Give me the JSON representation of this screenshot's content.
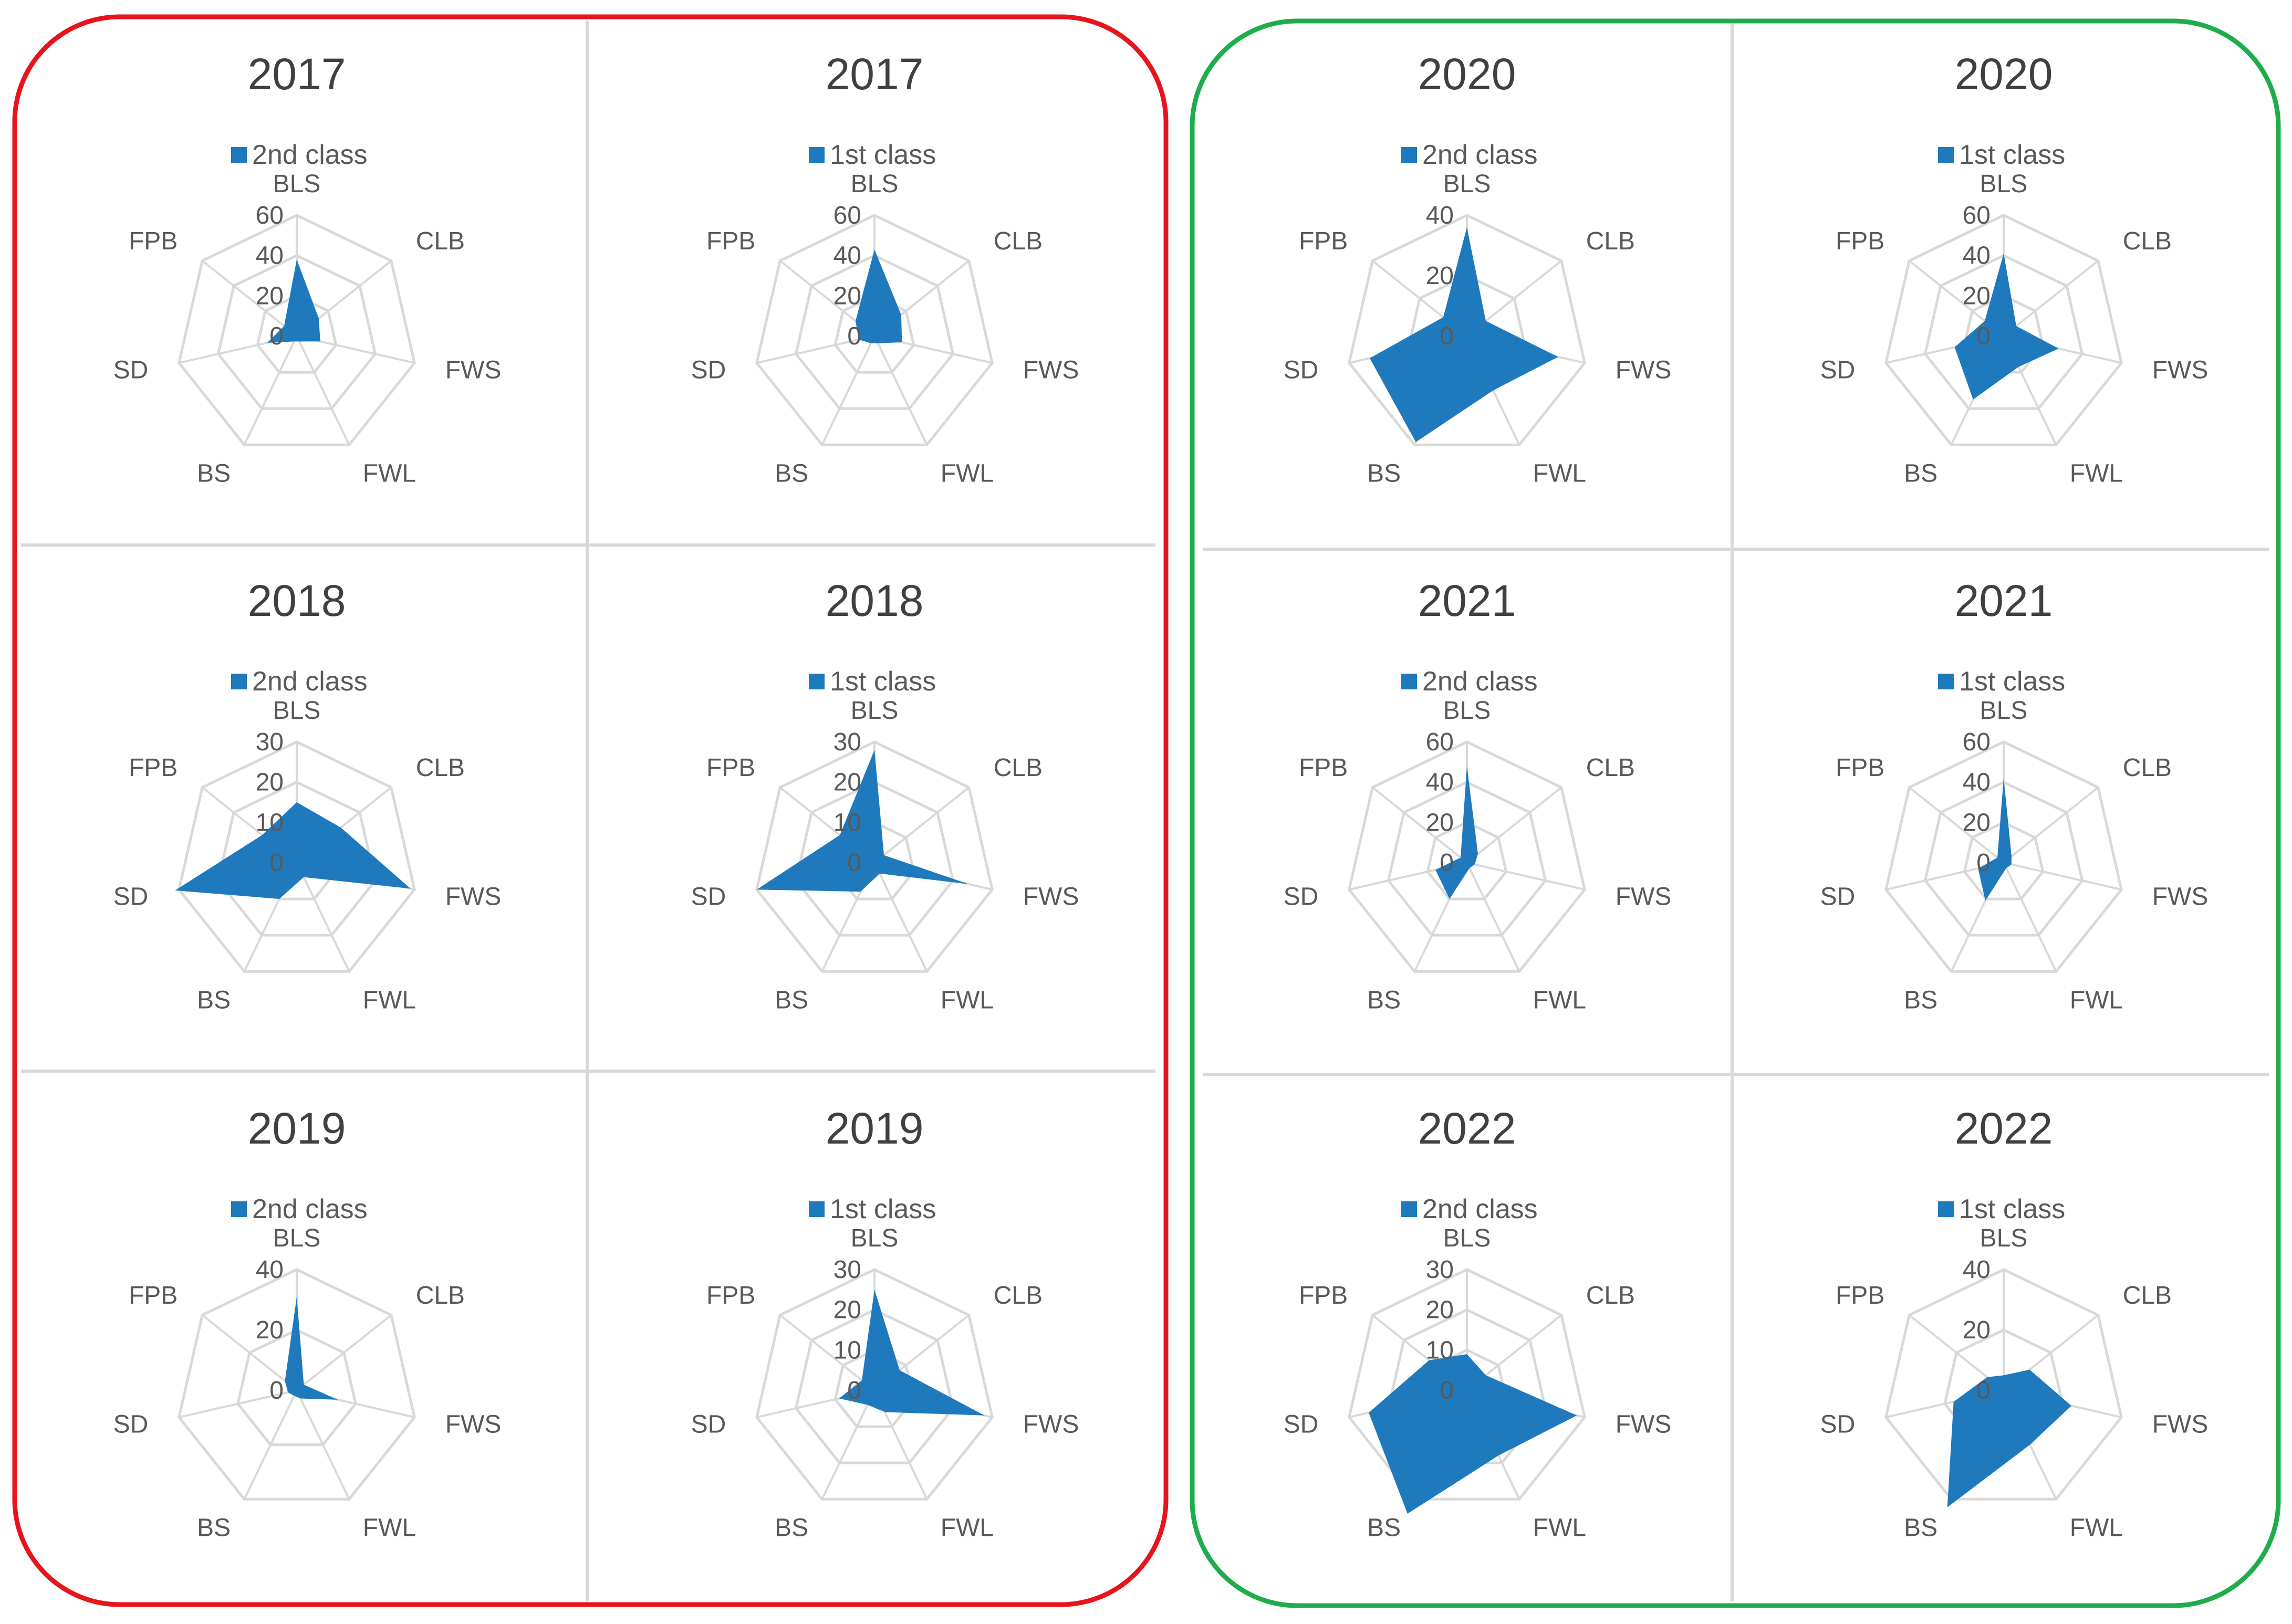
{
  "colors": {
    "series": "#1f7abd",
    "group_left": "#e8141c",
    "group_right": "#1fad4c",
    "grid": "#d9d9d9",
    "text": "#595959"
  },
  "axes": [
    "BLS",
    "CLB",
    "FWS",
    "FWL",
    "BS",
    "SD",
    "FPB"
  ],
  "chart_data": [
    {
      "type": "radar",
      "title": "2017",
      "series": [
        {
          "name": "2nd class",
          "values": [
            38,
            14,
            12,
            3,
            3,
            15,
            8
          ]
        }
      ],
      "rmax": 60,
      "ticks": [
        "0",
        "20",
        "40",
        "60"
      ]
    },
    {
      "type": "radar",
      "title": "2017",
      "series": [
        {
          "name": "1st class",
          "values": [
            43,
            17,
            14,
            4,
            4,
            8,
            12
          ]
        }
      ],
      "rmax": 60,
      "ticks": [
        "0",
        "20",
        "40",
        "60"
      ]
    },
    {
      "type": "radar",
      "title": "2020",
      "series": [
        {
          "name": "2nd class",
          "values": [
            36,
            8,
            31,
            20,
            39,
            33,
            10
          ]
        }
      ],
      "rmax": 40,
      "ticks": [
        "0",
        "20",
        "40"
      ]
    },
    {
      "type": "radar",
      "title": "2020",
      "series": [
        {
          "name": "1st class",
          "values": [
            41,
            8,
            28,
            17,
            35,
            25,
            12
          ]
        }
      ],
      "rmax": 60,
      "ticks": [
        "0",
        "20",
        "40",
        "60"
      ]
    },
    {
      "type": "radar",
      "title": "2018",
      "series": [
        {
          "name": "2nd class",
          "values": [
            15,
            14,
            29,
            4,
            10,
            31,
            11
          ]
        }
      ],
      "rmax": 30,
      "ticks": [
        "0",
        "10",
        "20",
        "30"
      ]
    },
    {
      "type": "radar",
      "title": "2018",
      "series": [
        {
          "name": "1st class",
          "values": [
            28,
            3,
            24,
            3,
            8,
            30,
            11
          ]
        }
      ],
      "rmax": 30,
      "ticks": [
        "0",
        "10",
        "20",
        "30"
      ]
    },
    {
      "type": "radar",
      "title": "2021",
      "series": [
        {
          "name": "2nd class",
          "values": [
            48,
            7,
            4,
            3,
            20,
            16,
            4
          ]
        }
      ],
      "rmax": 60,
      "ticks": [
        "0",
        "20",
        "40",
        "60"
      ]
    },
    {
      "type": "radar",
      "title": "2021",
      "series": [
        {
          "name": "1st class",
          "values": [
            42,
            5,
            4,
            3,
            21,
            13,
            4
          ]
        }
      ],
      "rmax": 60,
      "ticks": [
        "0",
        "20",
        "40",
        "60"
      ]
    },
    {
      "type": "radar",
      "title": "2019",
      "series": [
        {
          "name": "2nd class",
          "values": [
            31,
            3,
            14,
            3,
            2,
            3,
            5
          ]
        }
      ],
      "rmax": 40,
      "ticks": [
        "0",
        "20",
        "40"
      ]
    },
    {
      "type": "radar",
      "title": "2019",
      "series": [
        {
          "name": "1st class",
          "values": [
            25,
            8,
            28,
            6,
            4,
            9,
            4
          ]
        }
      ],
      "rmax": 30,
      "ticks": [
        "0",
        "10",
        "20",
        "30"
      ]
    },
    {
      "type": "radar",
      "title": "2022",
      "series": [
        {
          "name": "2nd class",
          "values": [
            9,
            6,
            28,
            18,
            34,
            25,
            12
          ]
        }
      ],
      "rmax": 30,
      "ticks": [
        "0",
        "10",
        "20",
        "30"
      ]
    },
    {
      "type": "radar",
      "title": "2022",
      "series": [
        {
          "name": "1st class",
          "values": [
            5,
            11,
            23,
            20,
            43,
            17,
            7
          ]
        }
      ],
      "rmax": 40,
      "ticks": [
        "0",
        "20",
        "40"
      ]
    }
  ]
}
